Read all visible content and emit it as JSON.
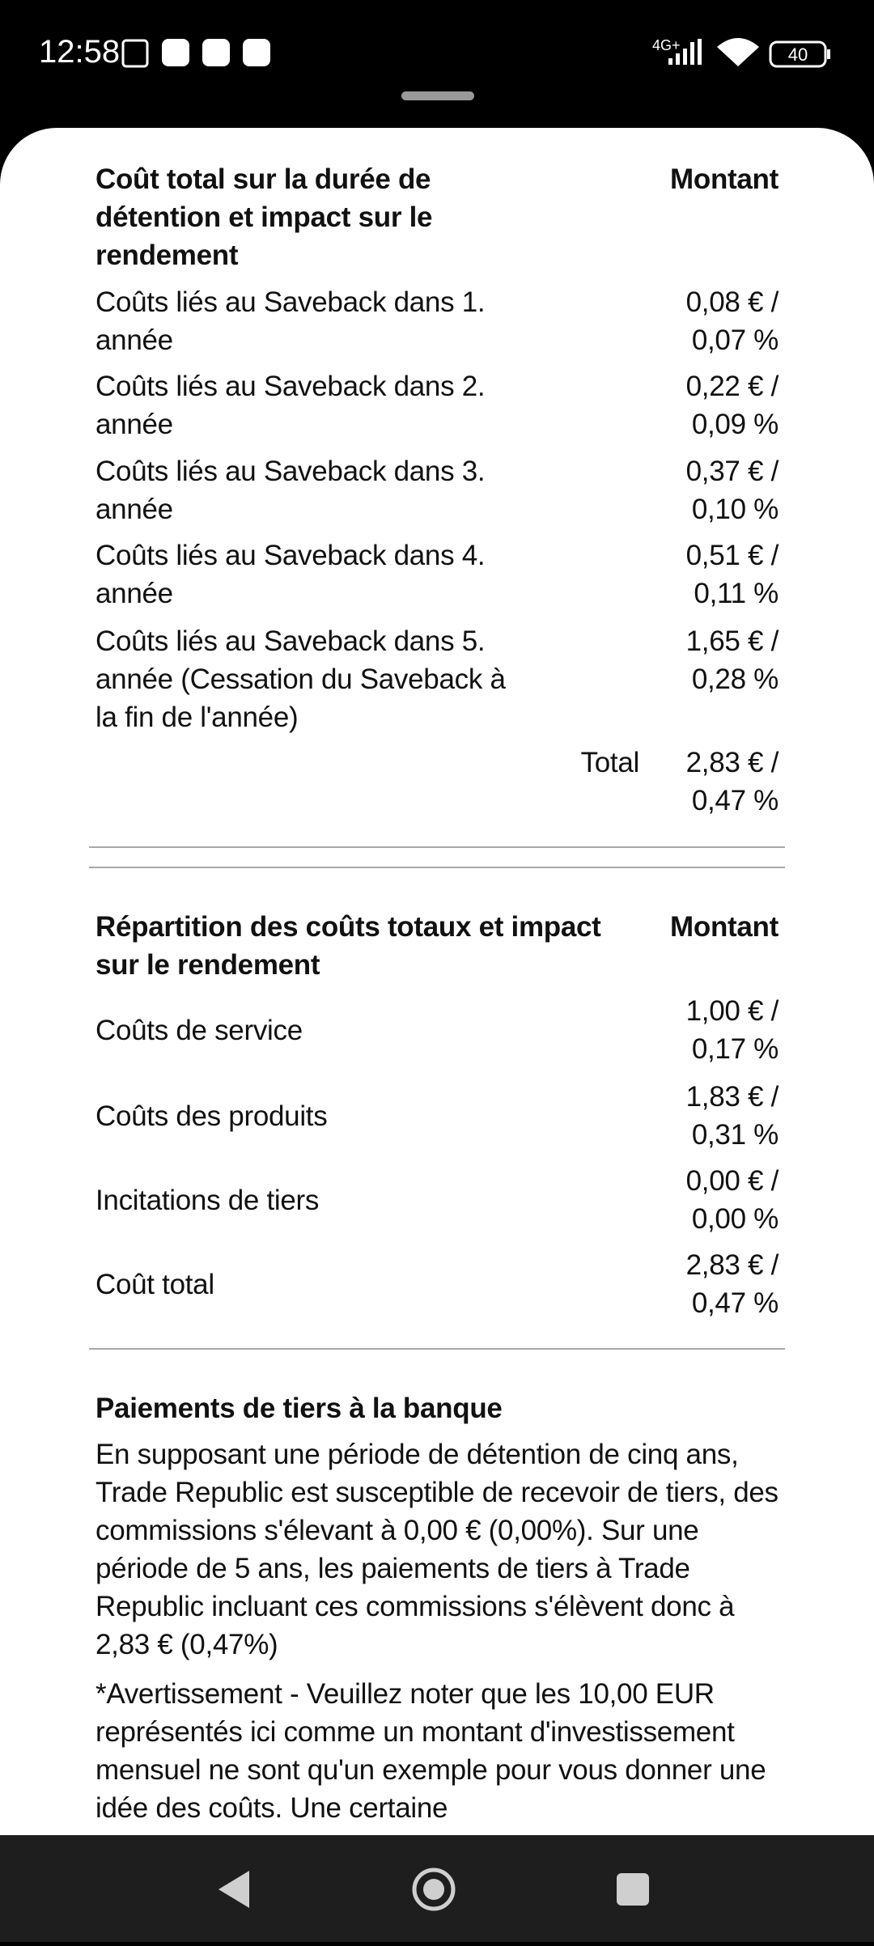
{
  "status_bar": {
    "time": "12:58",
    "network": "4G+",
    "battery": "40"
  },
  "section1": {
    "header_label": "Coût total sur la durée de détention et impact sur le rendement",
    "header_amount": "Montant",
    "rows": [
      {
        "label": "Coûts liés au Saveback dans 1. année",
        "amount": "0,08 € / 0,07 %"
      },
      {
        "label": "Coûts liés au Saveback dans 2. année",
        "amount": "0,22 € / 0,09 %"
      },
      {
        "label": "Coûts liés au Saveback dans 3. année",
        "amount": "0,37 € / 0,10 %"
      },
      {
        "label": "Coûts liés au Saveback dans 4. année",
        "amount": "0,51 € / 0,11 %"
      },
      {
        "label": "Coûts liés au Saveback dans 5. année (Cessation du Saveback à la fin de l'année)",
        "amount": "1,65 € / 0,28 %"
      }
    ],
    "total_label": "Total",
    "total_amount": "2,83 € / 0,47 %"
  },
  "section2": {
    "header_label": "Répartition des coûts totaux et impact sur le rendement",
    "header_amount": "Montant",
    "rows": [
      {
        "label": "Coûts de service",
        "amount": "1,00 € / 0,17 %"
      },
      {
        "label": "Coûts des produits",
        "amount": "1,83 € / 0,31 %"
      },
      {
        "label": "Incitations de tiers",
        "amount": "0,00 € / 0,00 %"
      },
      {
        "label": "Coût total",
        "amount": "2,83 € / 0,47 %"
      }
    ]
  },
  "section3": {
    "title": "Paiements de tiers à la banque",
    "paragraphs": [
      "En supposant une période de détention de cinq ans, Trade Republic est susceptible de recevoir de tiers, des commissions s'élevant à 0,00 € (0,00%). Sur une période de 5 ans, les paiements de tiers à Trade Republic incluant ces commissions s'élèvent donc à 2,83 € (0,47%)",
      "*Avertissement - Veuillez noter que les 10,00 EUR représentés ici comme un montant d'investissement mensuel ne sont qu'un exemple pour vous donner une idée des coûts. Une certaine"
    ]
  }
}
